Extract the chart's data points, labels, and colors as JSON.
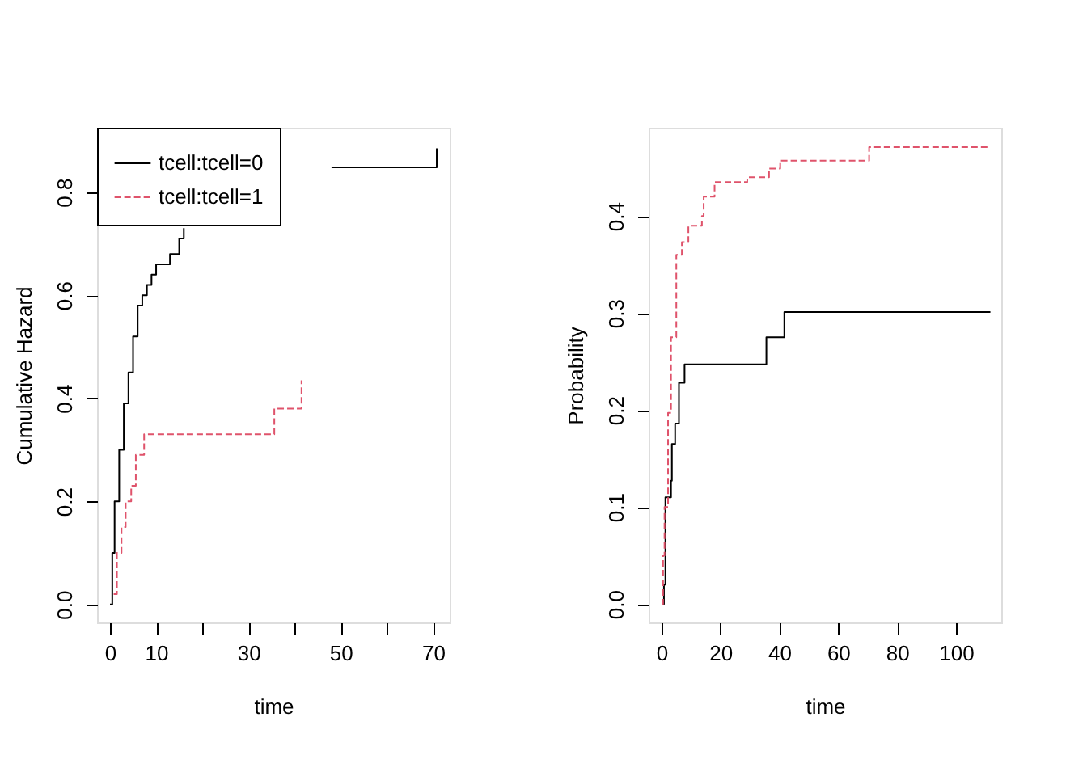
{
  "chart_data": [
    {
      "type": "step",
      "xlabel": "time",
      "ylabel": "Cumulative Hazard",
      "xlim": [
        -2.8,
        73.6
      ],
      "ylim": [
        -0.035,
        0.925
      ],
      "xticks": [
        0,
        10,
        {
          "value": 20,
          "label": null
        },
        30,
        {
          "value": 40,
          "label": null
        },
        50,
        {
          "value": 60,
          "label": null
        },
        70
      ],
      "yticks": [
        {
          "value": 0,
          "label": "0.0"
        },
        0.2,
        0.4,
        0.6,
        0.8
      ],
      "grid": false,
      "legend": "top left",
      "marker": "none",
      "series": [
        {
          "name": "tcell:tcell=0",
          "color": "#000000",
          "line_style": "solid",
          "x": [
            0,
            0.5,
            1,
            2,
            3,
            4,
            5,
            6,
            7,
            8,
            9,
            10,
            12,
            13,
            15,
            16,
            17,
            17.5,
            48,
            70.8,
            70.8
          ],
          "values": [
            0,
            0.1,
            0.2,
            0.3,
            0.39,
            0.45,
            0.52,
            0.58,
            0.6,
            0.62,
            0.64,
            0.66,
            0.66,
            0.68,
            0.71,
            0.73,
            null,
            null,
            0.848,
            0.848,
            0.885
          ]
        },
        {
          "name": "tcell:tcell=1",
          "color": "#df536b",
          "line_style": "dashed",
          "x": [
            0.8,
            1.5,
            2.5,
            3.4,
            4.6,
            5.6,
            7.4,
            35.6,
            41.5,
            41.5
          ],
          "values": [
            0.02,
            0.1,
            0.15,
            0.2,
            0.23,
            0.29,
            0.33,
            0.38,
            0.38,
            0.435
          ]
        }
      ]
    },
    {
      "type": "step",
      "xlabel": "time",
      "ylabel": "Probability",
      "xlim": [
        -4.4,
        115.4
      ],
      "ylim": [
        -0.019,
        0.491
      ],
      "xticks": [
        0,
        20,
        40,
        60,
        80,
        100
      ],
      "yticks": [
        {
          "value": 0,
          "label": "0.0"
        },
        0.1,
        0.2,
        0.3,
        0.4
      ],
      "grid": false,
      "legend": false,
      "marker": "none",
      "series": [
        {
          "color": "#000000",
          "line_style": "solid",
          "x": [
            0,
            0.8,
            1.3,
            3.2,
            3.5,
            4.6,
            5.9,
            7.8,
            35.6,
            41.7,
            111.7
          ],
          "values": [
            0,
            0.02,
            0.11,
            0.127,
            0.165,
            0.186,
            0.228,
            0.247,
            0.275,
            0.301,
            0.301
          ]
        },
        {
          "color": "#df536b",
          "line_style": "dashed",
          "x": [
            0,
            0.5,
            1,
            2.2,
            3.2,
            5,
            6.9,
            9.1,
            13.7,
            14.3,
            18,
            29.1,
            36.5,
            40.3,
            70.5,
            111.7
          ],
          "values": [
            0,
            0.05,
            0.1,
            0.197,
            0.275,
            0.36,
            0.373,
            0.39,
            0.4,
            0.42,
            0.435,
            0.44,
            0.449,
            0.457,
            0.471,
            0.471
          ]
        }
      ]
    }
  ]
}
